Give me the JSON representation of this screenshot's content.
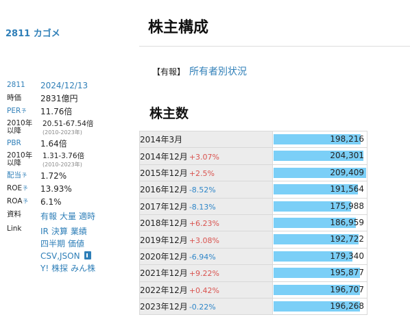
{
  "sidebar": {
    "title": "2811 カゴメ",
    "code": "2811",
    "date": "2024/12/13",
    "market_cap_label": "時価",
    "market_cap": "2831億円",
    "per_label": "PER",
    "forecast_mark": "予",
    "per": "11.76倍",
    "per_range_label": "2010年以降",
    "per_range": "20.51-67.54倍",
    "per_range_years": "(2010-2023年)",
    "pbr_label": "PBR",
    "pbr": "1.64倍",
    "pbr_range_label": "2010年以降",
    "pbr_range": "1.31-3.76倍",
    "pbr_range_years": "(2010-2023年)",
    "dividend_label": "配当",
    "dividend": "1.72%",
    "roe_label": "ROE",
    "roe": "13.93%",
    "roa_label": "ROA",
    "roa": "6.1%",
    "materials_label": "資料",
    "materials_links": [
      "有報",
      "大量",
      "適時"
    ],
    "link_label": "Link",
    "links": [
      "IR",
      "決算",
      "業績",
      "四半期",
      "価値",
      "CSV,JSON",
      "Y!",
      "株探",
      "みん株"
    ]
  },
  "main": {
    "title": "株主構成",
    "crumb_tag": "【有報】",
    "crumb_link": "所有者別状況",
    "section_title": "株主数"
  },
  "shareholders": [
    {
      "period": "2014年3月",
      "change": "",
      "dir": "",
      "value": "198,216",
      "count": 198216
    },
    {
      "period": "2014年12月",
      "change": "+3.07%",
      "dir": "pos",
      "value": "204,301",
      "count": 204301
    },
    {
      "period": "2015年12月",
      "change": "+2.5%",
      "dir": "pos",
      "value": "209,409",
      "count": 209409
    },
    {
      "period": "2016年12月",
      "change": "-8.52%",
      "dir": "neg",
      "value": "191,564",
      "count": 191564
    },
    {
      "period": "2017年12月",
      "change": "-8.13%",
      "dir": "neg",
      "value": "175,988",
      "count": 175988
    },
    {
      "period": "2018年12月",
      "change": "+6.23%",
      "dir": "pos",
      "value": "186,959",
      "count": 186959
    },
    {
      "period": "2019年12月",
      "change": "+3.08%",
      "dir": "pos",
      "value": "192,722",
      "count": 192722
    },
    {
      "period": "2020年12月",
      "change": "-6.94%",
      "dir": "neg",
      "value": "179,340",
      "count": 179340
    },
    {
      "period": "2021年12月",
      "change": "+9.22%",
      "dir": "pos",
      "value": "195,877",
      "count": 195877
    },
    {
      "period": "2022年12月",
      "change": "+0.42%",
      "dir": "pos",
      "value": "196,707",
      "count": 196707
    },
    {
      "period": "2023年12月",
      "change": "-0.22%",
      "dir": "neg",
      "value": "196,268",
      "count": 196268
    }
  ],
  "colors": {
    "bar": "#7bcff7",
    "link": "#2f7fb8",
    "positive": "#d9534f",
    "negative": "#2f86c8"
  }
}
